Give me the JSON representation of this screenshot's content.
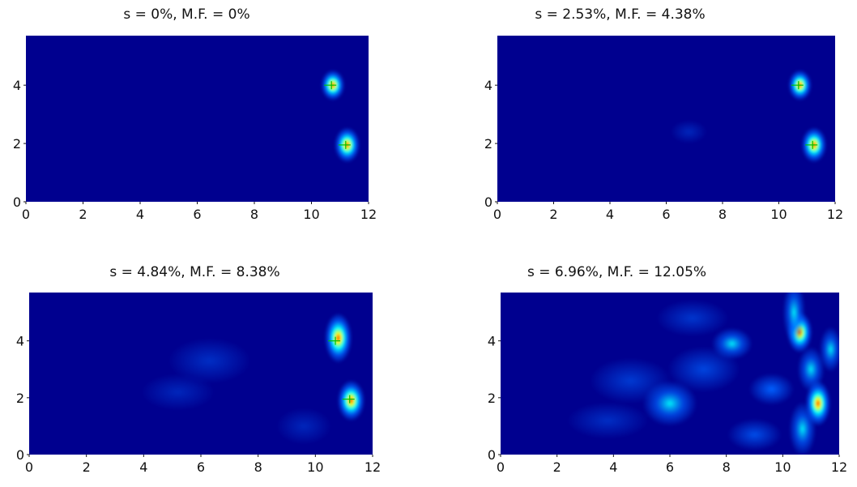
{
  "colors": {
    "background": "#00008f",
    "hot": "#ff0000",
    "warm": "#ffff00",
    "mid": "#00ffff",
    "low": "#0060ff",
    "source_marker": "#00c000"
  },
  "chart_data": [
    {
      "type": "heatmap",
      "title": "s = 0%, M.F. = 0%",
      "xlim": [
        0,
        12
      ],
      "ylim": [
        0,
        5.7
      ],
      "xticks": [
        "0",
        "2",
        "4",
        "6",
        "8",
        "10",
        "12"
      ],
      "yticks": [
        "0",
        "2",
        "4"
      ],
      "markers": [
        {
          "x": 10.7,
          "y": 4.0
        },
        {
          "x": 11.2,
          "y": 1.95
        }
      ],
      "blobs": [
        {
          "x": 10.75,
          "y": 4.0,
          "rx": 0.26,
          "ry": 0.33,
          "peak": 1.0
        },
        {
          "x": 11.25,
          "y": 1.95,
          "rx": 0.28,
          "ry": 0.38,
          "peak": 1.0
        }
      ]
    },
    {
      "type": "heatmap",
      "title": "s = 2.53%, M.F. = 4.38%",
      "xlim": [
        0,
        12
      ],
      "ylim": [
        0,
        5.7
      ],
      "xticks": [
        "0",
        "2",
        "4",
        "6",
        "8",
        "10",
        "12"
      ],
      "yticks": [
        "0",
        "2",
        "4"
      ],
      "markers": [
        {
          "x": 10.7,
          "y": 4.0
        },
        {
          "x": 11.2,
          "y": 1.95
        }
      ],
      "blobs": [
        {
          "x": 10.75,
          "y": 4.0,
          "rx": 0.26,
          "ry": 0.33,
          "peak": 1.0
        },
        {
          "x": 11.25,
          "y": 1.95,
          "rx": 0.28,
          "ry": 0.38,
          "peak": 1.0
        },
        {
          "x": 6.8,
          "y": 2.4,
          "rx": 0.4,
          "ry": 0.25,
          "peak": 0.1
        }
      ]
    },
    {
      "type": "heatmap",
      "title": "s = 4.84%, M.F. = 8.38%",
      "xlim": [
        0,
        12
      ],
      "ylim": [
        0,
        5.7
      ],
      "xticks": [
        "0",
        "2",
        "4",
        "6",
        "8",
        "10",
        "12"
      ],
      "yticks": [
        "0",
        "2",
        "4"
      ],
      "markers": [
        {
          "x": 10.7,
          "y": 4.0
        },
        {
          "x": 11.2,
          "y": 1.95
        }
      ],
      "blobs": [
        {
          "x": 10.8,
          "y": 4.1,
          "rx": 0.3,
          "ry": 0.55,
          "peak": 1.0
        },
        {
          "x": 11.25,
          "y": 1.9,
          "rx": 0.3,
          "ry": 0.45,
          "peak": 0.95
        },
        {
          "x": 6.3,
          "y": 3.3,
          "rx": 0.9,
          "ry": 0.5,
          "peak": 0.12
        },
        {
          "x": 5.2,
          "y": 2.2,
          "rx": 0.8,
          "ry": 0.4,
          "peak": 0.1
        },
        {
          "x": 9.6,
          "y": 1.0,
          "rx": 0.6,
          "ry": 0.4,
          "peak": 0.1
        }
      ]
    },
    {
      "type": "heatmap",
      "title": "s = 6.96%, M.F. = 12.05%",
      "xlim": [
        0,
        12
      ],
      "ylim": [
        0,
        5.7
      ],
      "xticks": [
        "0",
        "2",
        "4",
        "6",
        "8",
        "10",
        "12"
      ],
      "yticks": [
        "0",
        "2",
        "4"
      ],
      "markers": [],
      "blobs": [
        {
          "x": 10.6,
          "y": 4.3,
          "rx": 0.28,
          "ry": 0.45,
          "peak": 1.0
        },
        {
          "x": 11.25,
          "y": 1.8,
          "rx": 0.28,
          "ry": 0.5,
          "peak": 0.9
        },
        {
          "x": 10.4,
          "y": 5.0,
          "rx": 0.25,
          "ry": 0.7,
          "peak": 0.45
        },
        {
          "x": 11.0,
          "y": 3.0,
          "rx": 0.3,
          "ry": 0.5,
          "peak": 0.4
        },
        {
          "x": 10.7,
          "y": 0.9,
          "rx": 0.3,
          "ry": 0.6,
          "peak": 0.35
        },
        {
          "x": 11.7,
          "y": 3.7,
          "rx": 0.25,
          "ry": 0.5,
          "peak": 0.3
        },
        {
          "x": 8.2,
          "y": 3.9,
          "rx": 0.45,
          "ry": 0.35,
          "peak": 0.35
        },
        {
          "x": 6.0,
          "y": 1.8,
          "rx": 0.6,
          "ry": 0.5,
          "peak": 0.3
        },
        {
          "x": 9.6,
          "y": 2.3,
          "rx": 0.5,
          "ry": 0.35,
          "peak": 0.25
        },
        {
          "x": 7.2,
          "y": 3.0,
          "rx": 0.8,
          "ry": 0.5,
          "peak": 0.18
        },
        {
          "x": 4.6,
          "y": 2.6,
          "rx": 0.9,
          "ry": 0.5,
          "peak": 0.15
        },
        {
          "x": 3.8,
          "y": 1.2,
          "rx": 0.9,
          "ry": 0.4,
          "peak": 0.12
        },
        {
          "x": 6.8,
          "y": 4.8,
          "rx": 0.8,
          "ry": 0.4,
          "peak": 0.14
        },
        {
          "x": 9.0,
          "y": 0.7,
          "rx": 0.6,
          "ry": 0.35,
          "peak": 0.2
        }
      ]
    }
  ]
}
